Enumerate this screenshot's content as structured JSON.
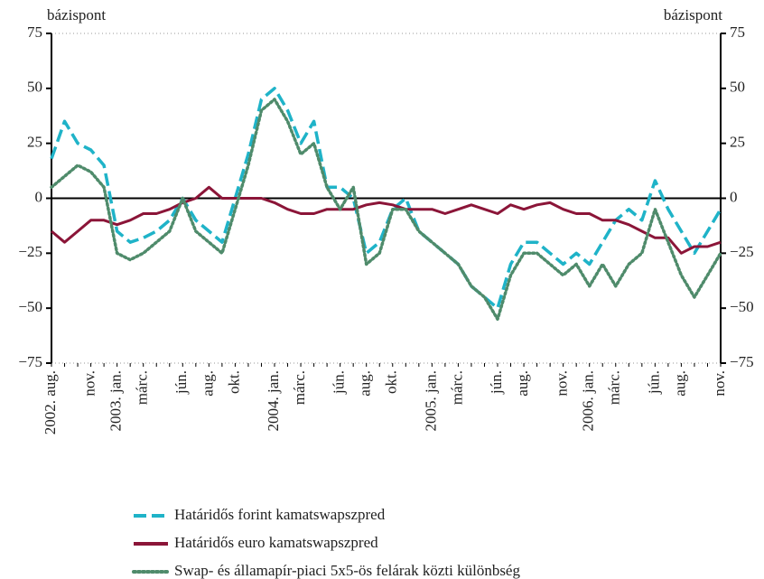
{
  "chart_data": {
    "type": "line",
    "y_label": "bázispont",
    "y2_label": "bázispont",
    "categories": [
      "2002. aug.",
      null,
      null,
      "nov.",
      null,
      "2003. jan.",
      null,
      "márc.",
      null,
      null,
      "jún.",
      null,
      "aug.",
      null,
      "okt.",
      null,
      null,
      "2004. jan.",
      null,
      "márc.",
      null,
      null,
      "jún.",
      null,
      "aug.",
      null,
      "okt.",
      null,
      null,
      "2005. jan.",
      null,
      "márc.",
      null,
      null,
      "jún.",
      null,
      "aug.",
      null,
      null,
      "nov.",
      null,
      "2006. jan.",
      null,
      "márc.",
      null,
      null,
      "jún.",
      null,
      "aug.",
      null,
      null,
      "nov."
    ],
    "series": [
      {
        "name": "Határidős forint kamatswapszpred",
        "color": "#1fb3c8",
        "style": "dashed",
        "values": [
          18,
          35,
          25,
          22,
          15,
          -15,
          -20,
          -18,
          -15,
          -10,
          0,
          -10,
          -15,
          -20,
          0,
          20,
          45,
          50,
          40,
          25,
          35,
          5,
          5,
          0,
          -25,
          -20,
          -5,
          0,
          -15,
          -20,
          -25,
          -30,
          -40,
          -45,
          -50,
          -30,
          -20,
          -20,
          -25,
          -30,
          -25,
          -30,
          -20,
          -10,
          -5,
          -10,
          8,
          -5,
          -15,
          -25,
          -15,
          -5
        ]
      },
      {
        "name": "Határidős euro kamatswapszpred",
        "color": "#8b1538",
        "style": "solid",
        "values": [
          -15,
          -20,
          -15,
          -10,
          -10,
          -12,
          -10,
          -7,
          -7,
          -5,
          -2,
          0,
          5,
          0,
          0,
          0,
          0,
          -2,
          -5,
          -7,
          -7,
          -5,
          -5,
          -5,
          -3,
          -2,
          -3,
          -5,
          -5,
          -5,
          -7,
          -5,
          -3,
          -5,
          -7,
          -3,
          -5,
          -3,
          -2,
          -5,
          -7,
          -7,
          -10,
          -10,
          -12,
          -15,
          -18,
          -18,
          -25,
          -22,
          -22,
          -20
        ]
      },
      {
        "name": "Swap- és államapír-piaci 5x5-ös felárak közti különbség",
        "color": "#4f8b6b",
        "style": "dotted",
        "values": [
          5,
          10,
          15,
          12,
          5,
          -25,
          -28,
          -25,
          -20,
          -15,
          0,
          -15,
          -20,
          -25,
          -5,
          15,
          40,
          45,
          35,
          20,
          25,
          5,
          -5,
          5,
          -30,
          -25,
          -5,
          -5,
          -15,
          -20,
          -25,
          -30,
          -40,
          -45,
          -55,
          -35,
          -25,
          -25,
          -30,
          -35,
          -30,
          -40,
          -30,
          -40,
          -30,
          -25,
          -5,
          -20,
          -35,
          -45,
          -35,
          -25
        ]
      }
    ],
    "ylim": [
      -75,
      75
    ],
    "yticks": [
      75,
      50,
      25,
      0,
      {
        "value": -25,
        "label": "−25"
      },
      {
        "value": -50,
        "label": "−50"
      },
      {
        "value": -75,
        "label": "−75"
      }
    ],
    "y2lim": [
      -75,
      75
    ],
    "y2ticks": [
      75,
      50,
      25,
      0,
      {
        "value": -25,
        "label": "−25"
      },
      {
        "value": -50,
        "label": "−50"
      },
      {
        "value": -75,
        "label": "−75"
      }
    ]
  }
}
